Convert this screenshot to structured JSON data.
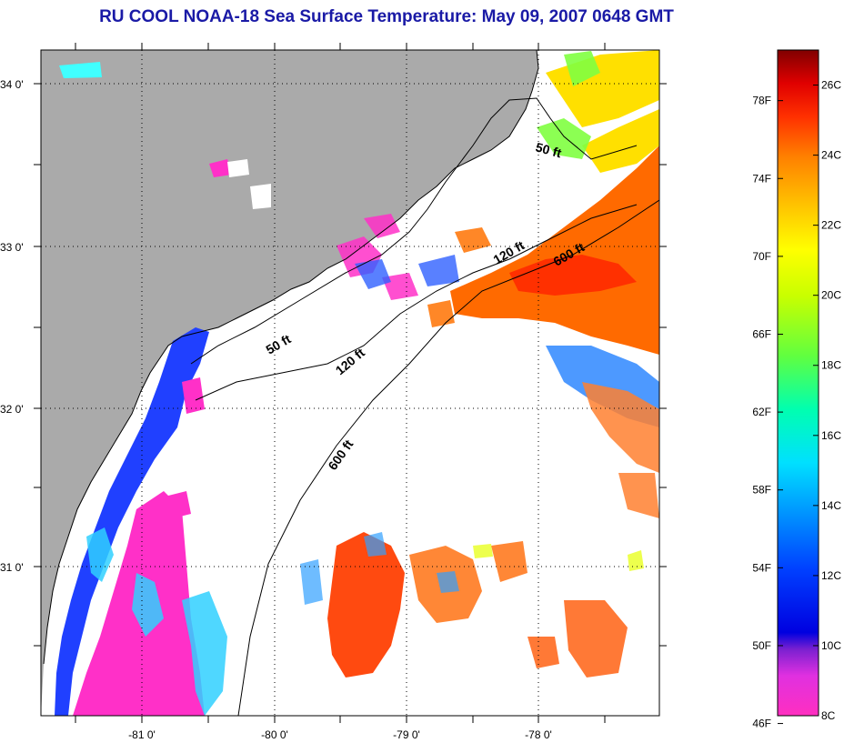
{
  "title": "RU COOL  NOAA-18  Sea Surface Temperature:  May 09, 2007 0648 GMT",
  "map": {
    "lat_ticks": [
      {
        "label": "34 0'",
        "value": 34.0
      },
      {
        "label": "33 0'",
        "value": 33.0
      },
      {
        "label": "32 0'",
        "value": 32.0
      },
      {
        "label": "31 0'",
        "value": 31.0
      }
    ],
    "lon_ticks": [
      {
        "label": "-81 0'",
        "value": -81.0
      },
      {
        "label": "-80 0'",
        "value": -80.0
      },
      {
        "label": "-79 0'",
        "value": -79.0
      },
      {
        "label": "-78 0'",
        "value": -78.0
      }
    ],
    "depth_contours": [
      {
        "label": "50 ft"
      },
      {
        "label": "120 ft"
      },
      {
        "label": "600 ft"
      },
      {
        "label": "50 ft"
      },
      {
        "label": "120 ft"
      },
      {
        "label": "600 ft"
      }
    ],
    "colors": {
      "land": "#aaaaaa",
      "cloud": "#ffffff",
      "frame": "#000000"
    }
  },
  "colorbar": {
    "fahrenheit_labels": [
      "78F",
      "74F",
      "70F",
      "66F",
      "62F",
      "58F",
      "54F",
      "50F",
      "46F"
    ],
    "celsius_labels": [
      "26C",
      "24C",
      "22C",
      "20C",
      "18C",
      "16C",
      "14C",
      "12C",
      "10C",
      "8C"
    ],
    "range_c": [
      8,
      27
    ]
  }
}
